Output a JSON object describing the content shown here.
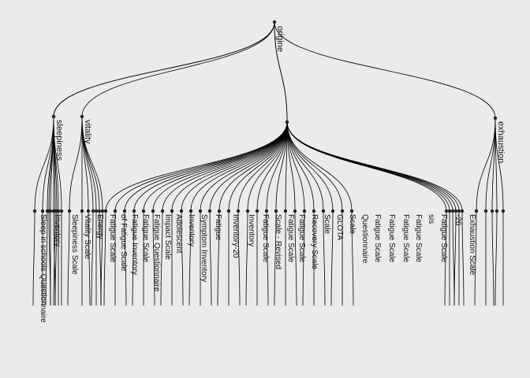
{
  "diagram": {
    "type": "dendrogram",
    "background": "#ebebeb",
    "edge_color": "#000000",
    "node_color": "#222222",
    "root": {
      "label": "origine"
    },
    "branches": [
      {
        "label": "sleepiness",
        "leaves": [
          "Sleep in schools Questionnaire",
          "",
          "",
          "",
          ""
        ]
      },
      {
        "label": "",
        "leaves": [
          "Inventory",
          "",
          "",
          "",
          ""
        ]
      },
      {
        "label": "vitality",
        "leaves": [
          "Sleepiness Scale",
          "Vitality Scale",
          "Energy",
          "",
          "",
          "",
          ""
        ]
      },
      {
        "label": "",
        "leaves": [
          "Fatigue Scale",
          "of Fatigue Scale",
          "Fatigue Inventory",
          "Fatigue Scale",
          "Fatigue Questionnaire",
          "Impact Scale",
          "Adolescent",
          "Inventory",
          "Symptom Inventory",
          "Fatigue",
          "Inventory-20",
          "Inventory",
          "Fatigue Scale",
          "Scale - Revised",
          "Fatigue Scale",
          "Fatigue Scale",
          "Recovery Scale",
          "Scale",
          "GLOTA",
          "Scale",
          "Questionnaire",
          "Fatigue Scale",
          "Fatigue Scale",
          "Fatigue Scale",
          "Fatigue Scale",
          "",
          ""
        ]
      },
      {
        "label": "",
        "leaves": [
          "sis",
          "",
          "",
          "",
          "",
          ""
        ]
      },
      {
        "label": "exhaustion",
        "leaves": [
          "Fatigue Scale",
          "-26",
          "Exhaustion Scale",
          "",
          ""
        ]
      }
    ]
  }
}
